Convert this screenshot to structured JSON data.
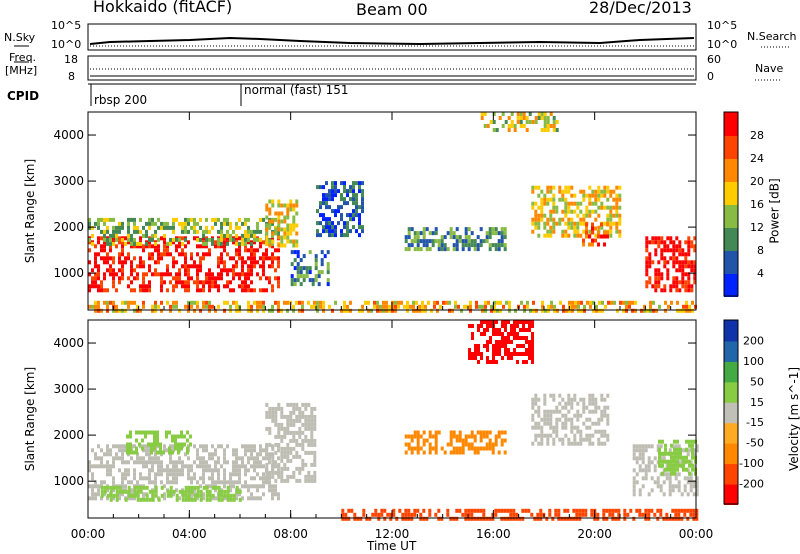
{
  "header": {
    "station": "Hokkaido (fitACF)",
    "beam": "Beam 00",
    "date": "28/Dec/2013"
  },
  "side_labels": {
    "nsky": "N.Sky",
    "nsky_tick_hi": "10^5",
    "nsky_tick_lo": "10^0",
    "freq": "Freq.",
    "freq_unit": "[MHz]",
    "freq_tick_hi": "18",
    "freq_tick_lo": "8",
    "cpid": "CPID",
    "nsearch": "N.Search",
    "nsearch_tick_hi": "10^5",
    "nsearch_tick_lo": "10^0",
    "nave": "Nave",
    "nave_tick_hi": "60",
    "nave_tick_lo": "0"
  },
  "cpid_modes": [
    {
      "label": "rbsp 200"
    },
    {
      "label": "normal (fast) 151"
    }
  ],
  "colors": {
    "power": [
      "#0022ff",
      "#2255aa",
      "#448855",
      "#88bb44",
      "#ffcc00",
      "#ff8800",
      "#ff4400",
      "#ff0000"
    ],
    "velocity": [
      "#ff0000",
      "#ff4400",
      "#ff8800",
      "#ffaa22",
      "#c0c0b8",
      "#88cc44",
      "#44aa44",
      "#2266aa",
      "#1133aa"
    ],
    "ground_scatter": "#bdbdb3"
  },
  "chart_data": [
    {
      "type": "heatmap",
      "name": "power",
      "xlabel": "Time UT",
      "ylabel": "Slant Range [km]",
      "xticks": [
        "00:00",
        "04:00",
        "08:00",
        "12:00",
        "16:00",
        "20:00",
        "00:00"
      ],
      "yticks": [
        "1000",
        "2000",
        "3000",
        "4000"
      ],
      "xlim": [
        0,
        24
      ],
      "ylim": [
        200,
        4500
      ],
      "colorbar": {
        "label": "Power [dB]",
        "ticks": [
          "4",
          "8",
          "12",
          "16",
          "20",
          "24",
          "28"
        ],
        "range": [
          0,
          32
        ]
      },
      "regions": [
        {
          "t0": 0.0,
          "t1": 7.5,
          "r0": 600,
          "r1": 1800,
          "level": 30
        },
        {
          "t0": 0.0,
          "t1": 7.5,
          "r0": 1600,
          "r1": 2200,
          "level": 14
        },
        {
          "t0": 7.0,
          "t1": 8.2,
          "r0": 1600,
          "r1": 2600,
          "level": 18
        },
        {
          "t0": 8.0,
          "t1": 9.5,
          "r0": 800,
          "r1": 1500,
          "level": 8
        },
        {
          "t0": 9.0,
          "t1": 10.8,
          "r0": 1800,
          "r1": 3000,
          "level": 6
        },
        {
          "t0": 12.5,
          "t1": 16.5,
          "r0": 1500,
          "r1": 2000,
          "level": 10
        },
        {
          "t0": 17.5,
          "t1": 21.0,
          "r0": 1800,
          "r1": 2900,
          "level": 18
        },
        {
          "t0": 19.5,
          "t1": 20.5,
          "r0": 1600,
          "r1": 2100,
          "level": 26
        },
        {
          "t0": 22.0,
          "t1": 24.0,
          "r0": 600,
          "r1": 1800,
          "level": 30
        },
        {
          "t0": 15.5,
          "t1": 18.5,
          "r0": 4100,
          "r1": 4500,
          "level": 16
        },
        {
          "t0": 0.0,
          "t1": 24.0,
          "r0": 200,
          "r1": 400,
          "level": 20
        }
      ]
    },
    {
      "type": "heatmap",
      "name": "velocity",
      "xlabel": "Time UT",
      "ylabel": "Slant Range [km]",
      "xticks": [
        "00:00",
        "04:00",
        "08:00",
        "12:00",
        "16:00",
        "20:00",
        "00:00"
      ],
      "yticks": [
        "1000",
        "2000",
        "3000",
        "4000"
      ],
      "xlim": [
        0,
        24
      ],
      "ylim": [
        200,
        4500
      ],
      "colorbar": {
        "label": "Velocity [m s^-1]",
        "ticks": [
          "-200",
          "-100",
          "-50",
          "-15",
          "15",
          "50",
          "100",
          "200"
        ],
        "range": [
          -250,
          250
        ]
      },
      "regions": [
        {
          "t0": 0.0,
          "t1": 7.5,
          "r0": 600,
          "r1": 1800,
          "class": "ground"
        },
        {
          "t0": 0.5,
          "t1": 6.0,
          "r0": 600,
          "r1": 900,
          "class": "pos50"
        },
        {
          "t0": 1.5,
          "t1": 4.0,
          "r0": 1600,
          "r1": 2100,
          "class": "pos15"
        },
        {
          "t0": 7.0,
          "t1": 9.0,
          "r0": 1000,
          "r1": 2700,
          "class": "ground"
        },
        {
          "t0": 12.5,
          "t1": 16.5,
          "r0": 1600,
          "r1": 2100,
          "class": "neg50"
        },
        {
          "t0": 17.5,
          "t1": 20.5,
          "r0": 1800,
          "r1": 2900,
          "class": "ground"
        },
        {
          "t0": 21.5,
          "t1": 24.0,
          "r0": 700,
          "r1": 1800,
          "class": "ground"
        },
        {
          "t0": 22.5,
          "t1": 24.0,
          "r0": 1200,
          "r1": 1900,
          "class": "pos50"
        },
        {
          "t0": 15.0,
          "t1": 17.5,
          "r0": 3600,
          "r1": 4500,
          "class": "neg200"
        },
        {
          "t0": 10.0,
          "t1": 24.0,
          "r0": 200,
          "r1": 400,
          "class": "neg100"
        }
      ]
    }
  ]
}
